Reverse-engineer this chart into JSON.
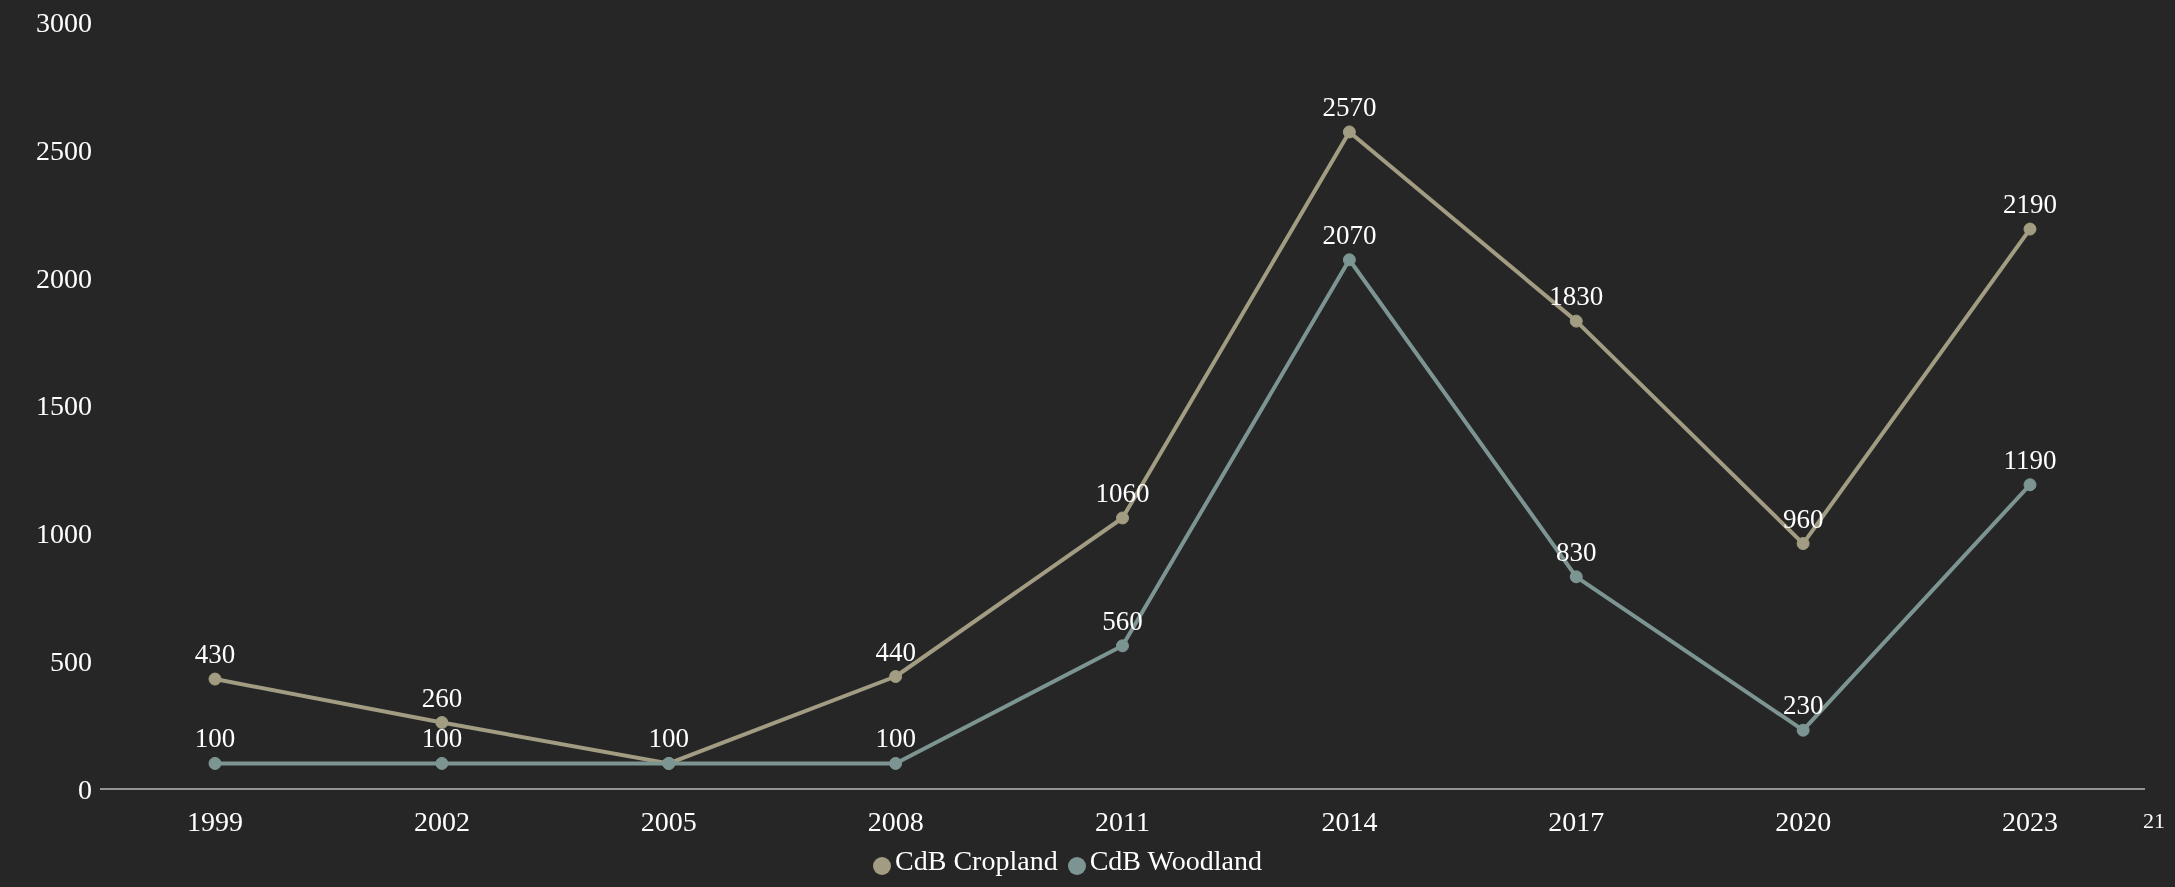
{
  "chart_data": {
    "type": "line",
    "categories": [
      "1999",
      "2002",
      "2005",
      "2008",
      "2011",
      "2014",
      "2017",
      "2020",
      "2023"
    ],
    "series": [
      {
        "name": "CdB Cropland",
        "color": "#a19c82",
        "values": [
          430,
          260,
          100,
          440,
          1060,
          2570,
          1830,
          960,
          2190
        ]
      },
      {
        "name": "CdB Woodland",
        "color": "#7d9592",
        "values": [
          100,
          100,
          100,
          100,
          560,
          2070,
          830,
          230,
          1190
        ],
        "value_labels": [
          "100",
          "100",
          null,
          "100",
          "560",
          "2070",
          "830",
          "230",
          "1190"
        ]
      }
    ],
    "ylim": [
      0,
      3000
    ],
    "yticks": [
      0,
      500,
      1000,
      1500,
      2000,
      2500,
      3000
    ],
    "data_labels": true,
    "legend": "bottom",
    "marker": "circle",
    "line_style": "solid",
    "annotations": [
      "21"
    ]
  }
}
